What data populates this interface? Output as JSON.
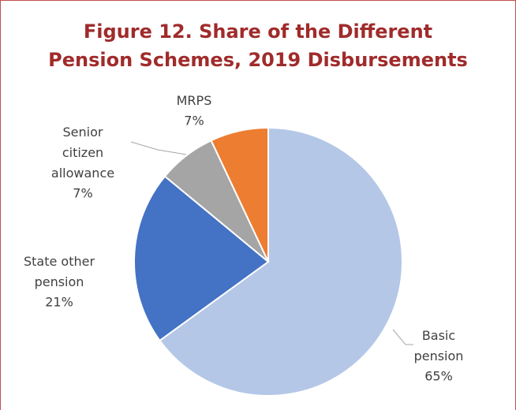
{
  "chart_data": {
    "type": "pie",
    "title": "Figure 12. Share of the Different Pension Schemes, 2019 Disbursements",
    "categories": [
      "Basic pension",
      "State other pension",
      "Senior citizen allowance",
      "MRPS"
    ],
    "values": [
      65,
      21,
      7,
      7
    ],
    "value_labels": [
      "65%",
      "21%",
      "7%",
      "7%"
    ],
    "colors": [
      "#b4c7e7",
      "#4472c4",
      "#a5a5a5",
      "#ed7d31"
    ]
  }
}
